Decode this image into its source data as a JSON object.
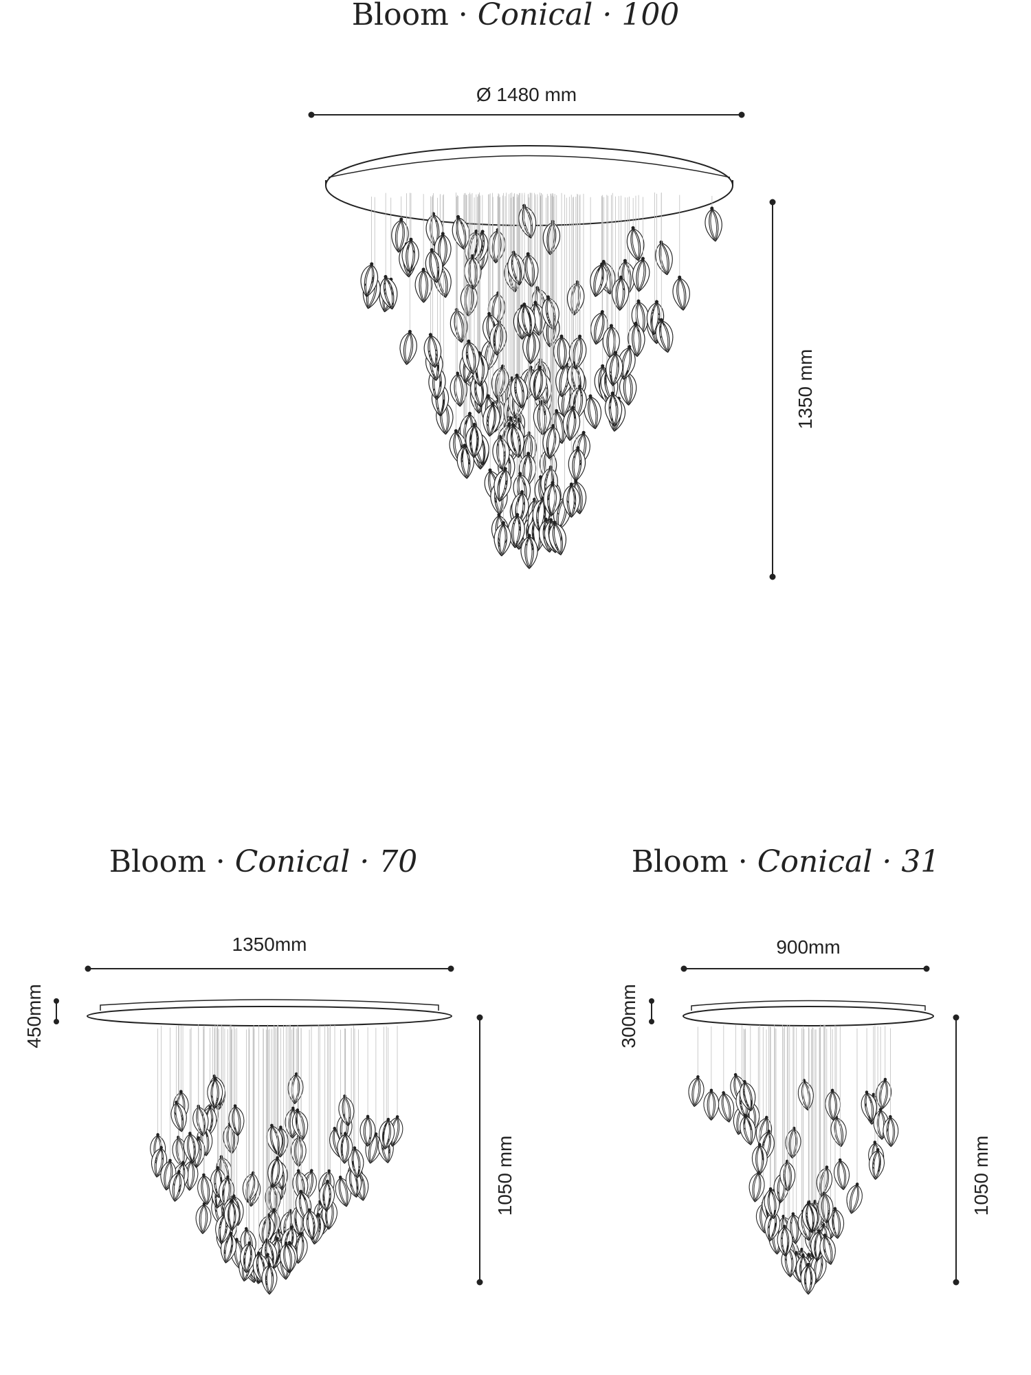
{
  "models": [
    {
      "name": "Bloom",
      "sep1": "·",
      "type": "Conical",
      "sep2": "·",
      "number": "100",
      "width_label": "Ø 1480 mm",
      "height_label": "1350 mm",
      "canopy_label": ""
    },
    {
      "name": "Bloom",
      "sep1": "·",
      "type": "Conical",
      "sep2": "·",
      "number": "70",
      "width_label": "1350mm",
      "height_label": "1050 mm",
      "canopy_label": "450mm"
    },
    {
      "name": "Bloom",
      "sep1": "·",
      "type": "Conical",
      "sep2": "·",
      "number": "31",
      "width_label": "900mm",
      "height_label": "1050 mm",
      "canopy_label": "300mm"
    }
  ],
  "colors": {
    "ink": "#222222",
    "wire": "#bdbdbd",
    "petal_fill": "#ffffff"
  }
}
